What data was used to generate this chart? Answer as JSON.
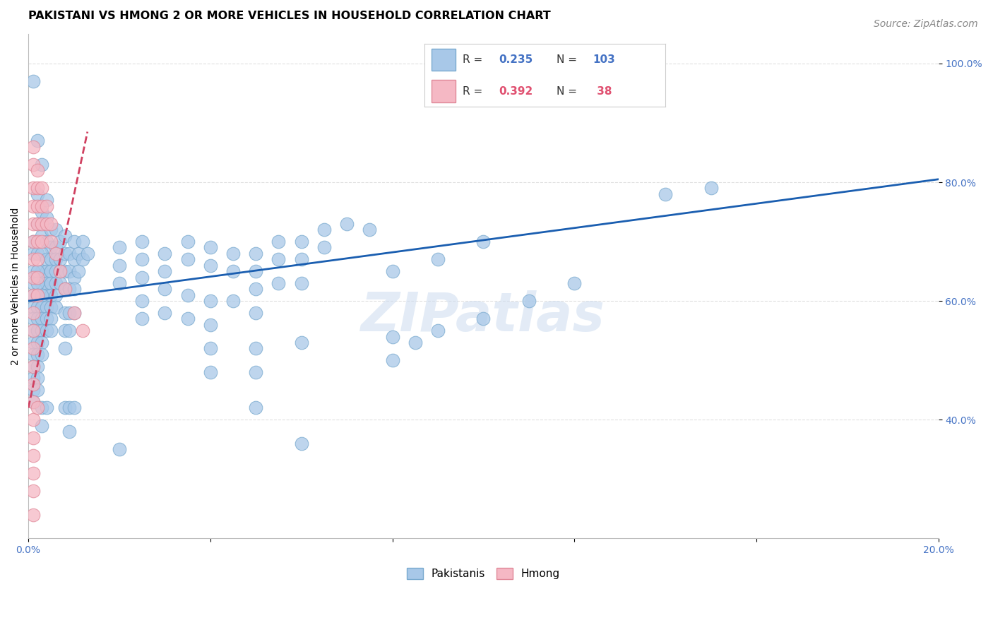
{
  "title": "PAKISTANI VS HMONG 2 OR MORE VEHICLES IN HOUSEHOLD CORRELATION CHART",
  "source": "Source: ZipAtlas.com",
  "ylabel": "2 or more Vehicles in Household",
  "xlim": [
    0.0,
    0.2
  ],
  "ylim": [
    0.2,
    1.05
  ],
  "blue_color": "#a8c8e8",
  "blue_edge": "#7aaacf",
  "pink_color": "#f5b8c4",
  "pink_edge": "#e08898",
  "line_blue": "#1a5eb0",
  "line_pink": "#d04060",
  "watermark": "ZIPatlas",
  "pakistani_dots": [
    [
      0.001,
      0.97
    ],
    [
      0.002,
      0.87
    ],
    [
      0.003,
      0.83
    ],
    [
      0.002,
      0.78
    ],
    [
      0.003,
      0.75
    ],
    [
      0.004,
      0.77
    ],
    [
      0.004,
      0.74
    ],
    [
      0.002,
      0.73
    ],
    [
      0.003,
      0.71
    ],
    [
      0.004,
      0.7
    ],
    [
      0.005,
      0.72
    ],
    [
      0.005,
      0.69
    ],
    [
      0.001,
      0.7
    ],
    [
      0.001,
      0.68
    ],
    [
      0.002,
      0.68
    ],
    [
      0.003,
      0.68
    ],
    [
      0.004,
      0.67
    ],
    [
      0.005,
      0.67
    ],
    [
      0.006,
      0.72
    ],
    [
      0.006,
      0.69
    ],
    [
      0.006,
      0.67
    ],
    [
      0.007,
      0.7
    ],
    [
      0.007,
      0.67
    ],
    [
      0.003,
      0.65
    ],
    [
      0.004,
      0.65
    ],
    [
      0.005,
      0.65
    ],
    [
      0.006,
      0.65
    ],
    [
      0.007,
      0.65
    ],
    [
      0.001,
      0.65
    ],
    [
      0.002,
      0.65
    ],
    [
      0.003,
      0.63
    ],
    [
      0.004,
      0.63
    ],
    [
      0.005,
      0.63
    ],
    [
      0.006,
      0.63
    ],
    [
      0.007,
      0.63
    ],
    [
      0.001,
      0.63
    ],
    [
      0.002,
      0.63
    ],
    [
      0.004,
      0.61
    ],
    [
      0.005,
      0.61
    ],
    [
      0.006,
      0.61
    ],
    [
      0.001,
      0.61
    ],
    [
      0.002,
      0.61
    ],
    [
      0.003,
      0.61
    ],
    [
      0.001,
      0.59
    ],
    [
      0.002,
      0.59
    ],
    [
      0.003,
      0.59
    ],
    [
      0.004,
      0.59
    ],
    [
      0.005,
      0.59
    ],
    [
      0.006,
      0.59
    ],
    [
      0.001,
      0.57
    ],
    [
      0.002,
      0.57
    ],
    [
      0.003,
      0.57
    ],
    [
      0.004,
      0.57
    ],
    [
      0.005,
      0.57
    ],
    [
      0.001,
      0.55
    ],
    [
      0.002,
      0.55
    ],
    [
      0.003,
      0.55
    ],
    [
      0.004,
      0.55
    ],
    [
      0.005,
      0.55
    ],
    [
      0.001,
      0.53
    ],
    [
      0.002,
      0.53
    ],
    [
      0.003,
      0.53
    ],
    [
      0.001,
      0.51
    ],
    [
      0.002,
      0.51
    ],
    [
      0.003,
      0.51
    ],
    [
      0.001,
      0.49
    ],
    [
      0.002,
      0.49
    ],
    [
      0.001,
      0.47
    ],
    [
      0.002,
      0.47
    ],
    [
      0.001,
      0.45
    ],
    [
      0.002,
      0.45
    ],
    [
      0.001,
      0.43
    ],
    [
      0.008,
      0.71
    ],
    [
      0.008,
      0.68
    ],
    [
      0.008,
      0.65
    ],
    [
      0.009,
      0.68
    ],
    [
      0.009,
      0.65
    ],
    [
      0.01,
      0.7
    ],
    [
      0.01,
      0.67
    ],
    [
      0.01,
      0.64
    ],
    [
      0.011,
      0.68
    ],
    [
      0.011,
      0.65
    ],
    [
      0.012,
      0.7
    ],
    [
      0.012,
      0.67
    ],
    [
      0.013,
      0.68
    ],
    [
      0.008,
      0.62
    ],
    [
      0.009,
      0.62
    ],
    [
      0.01,
      0.62
    ],
    [
      0.008,
      0.58
    ],
    [
      0.008,
      0.55
    ],
    [
      0.008,
      0.52
    ],
    [
      0.009,
      0.58
    ],
    [
      0.009,
      0.55
    ],
    [
      0.01,
      0.58
    ],
    [
      0.003,
      0.42
    ],
    [
      0.003,
      0.39
    ],
    [
      0.004,
      0.42
    ],
    [
      0.008,
      0.42
    ],
    [
      0.009,
      0.42
    ],
    [
      0.01,
      0.42
    ],
    [
      0.009,
      0.38
    ],
    [
      0.02,
      0.69
    ],
    [
      0.02,
      0.66
    ],
    [
      0.02,
      0.63
    ],
    [
      0.025,
      0.7
    ],
    [
      0.025,
      0.67
    ],
    [
      0.025,
      0.64
    ],
    [
      0.03,
      0.68
    ],
    [
      0.03,
      0.65
    ],
    [
      0.035,
      0.7
    ],
    [
      0.035,
      0.67
    ],
    [
      0.04,
      0.69
    ],
    [
      0.04,
      0.66
    ],
    [
      0.045,
      0.68
    ],
    [
      0.045,
      0.65
    ],
    [
      0.05,
      0.68
    ],
    [
      0.05,
      0.65
    ],
    [
      0.055,
      0.7
    ],
    [
      0.055,
      0.67
    ],
    [
      0.06,
      0.7
    ],
    [
      0.06,
      0.67
    ],
    [
      0.065,
      0.72
    ],
    [
      0.065,
      0.69
    ],
    [
      0.07,
      0.73
    ],
    [
      0.075,
      0.72
    ],
    [
      0.025,
      0.6
    ],
    [
      0.025,
      0.57
    ],
    [
      0.03,
      0.62
    ],
    [
      0.03,
      0.58
    ],
    [
      0.035,
      0.61
    ],
    [
      0.035,
      0.57
    ],
    [
      0.04,
      0.6
    ],
    [
      0.04,
      0.56
    ],
    [
      0.045,
      0.6
    ],
    [
      0.05,
      0.62
    ],
    [
      0.05,
      0.58
    ],
    [
      0.055,
      0.63
    ],
    [
      0.06,
      0.63
    ],
    [
      0.04,
      0.52
    ],
    [
      0.04,
      0.48
    ],
    [
      0.05,
      0.52
    ],
    [
      0.05,
      0.48
    ],
    [
      0.06,
      0.53
    ],
    [
      0.05,
      0.42
    ],
    [
      0.06,
      0.36
    ],
    [
      0.02,
      0.35
    ],
    [
      0.08,
      0.54
    ],
    [
      0.08,
      0.5
    ],
    [
      0.085,
      0.53
    ],
    [
      0.09,
      0.55
    ],
    [
      0.1,
      0.57
    ],
    [
      0.11,
      0.6
    ],
    [
      0.12,
      0.63
    ],
    [
      0.14,
      0.78
    ],
    [
      0.15,
      0.79
    ],
    [
      0.08,
      0.65
    ],
    [
      0.09,
      0.67
    ],
    [
      0.1,
      0.7
    ]
  ],
  "hmong_dots": [
    [
      0.001,
      0.86
    ],
    [
      0.001,
      0.83
    ],
    [
      0.001,
      0.79
    ],
    [
      0.001,
      0.76
    ],
    [
      0.001,
      0.73
    ],
    [
      0.001,
      0.7
    ],
    [
      0.001,
      0.67
    ],
    [
      0.001,
      0.64
    ],
    [
      0.001,
      0.61
    ],
    [
      0.001,
      0.58
    ],
    [
      0.001,
      0.55
    ],
    [
      0.001,
      0.52
    ],
    [
      0.001,
      0.49
    ],
    [
      0.001,
      0.46
    ],
    [
      0.001,
      0.43
    ],
    [
      0.001,
      0.4
    ],
    [
      0.001,
      0.37
    ],
    [
      0.001,
      0.34
    ],
    [
      0.001,
      0.31
    ],
    [
      0.001,
      0.28
    ],
    [
      0.002,
      0.82
    ],
    [
      0.002,
      0.79
    ],
    [
      0.002,
      0.76
    ],
    [
      0.002,
      0.73
    ],
    [
      0.002,
      0.7
    ],
    [
      0.002,
      0.67
    ],
    [
      0.002,
      0.64
    ],
    [
      0.002,
      0.61
    ],
    [
      0.003,
      0.79
    ],
    [
      0.003,
      0.76
    ],
    [
      0.003,
      0.73
    ],
    [
      0.003,
      0.7
    ],
    [
      0.004,
      0.76
    ],
    [
      0.004,
      0.73
    ],
    [
      0.005,
      0.73
    ],
    [
      0.005,
      0.7
    ],
    [
      0.006,
      0.68
    ],
    [
      0.007,
      0.65
    ],
    [
      0.008,
      0.62
    ],
    [
      0.01,
      0.58
    ],
    [
      0.012,
      0.55
    ],
    [
      0.002,
      0.42
    ],
    [
      0.001,
      0.24
    ]
  ],
  "blue_trend_x": [
    0.0,
    0.2
  ],
  "blue_trend_y": [
    0.6,
    0.805
  ],
  "pink_trend_x": [
    0.0,
    0.013
  ],
  "pink_trend_y": [
    0.42,
    0.885
  ],
  "background_color": "#ffffff",
  "grid_color": "#e0e0e0",
  "title_fontsize": 11.5,
  "axis_label_fontsize": 10,
  "tick_fontsize": 10,
  "source_fontsize": 10
}
